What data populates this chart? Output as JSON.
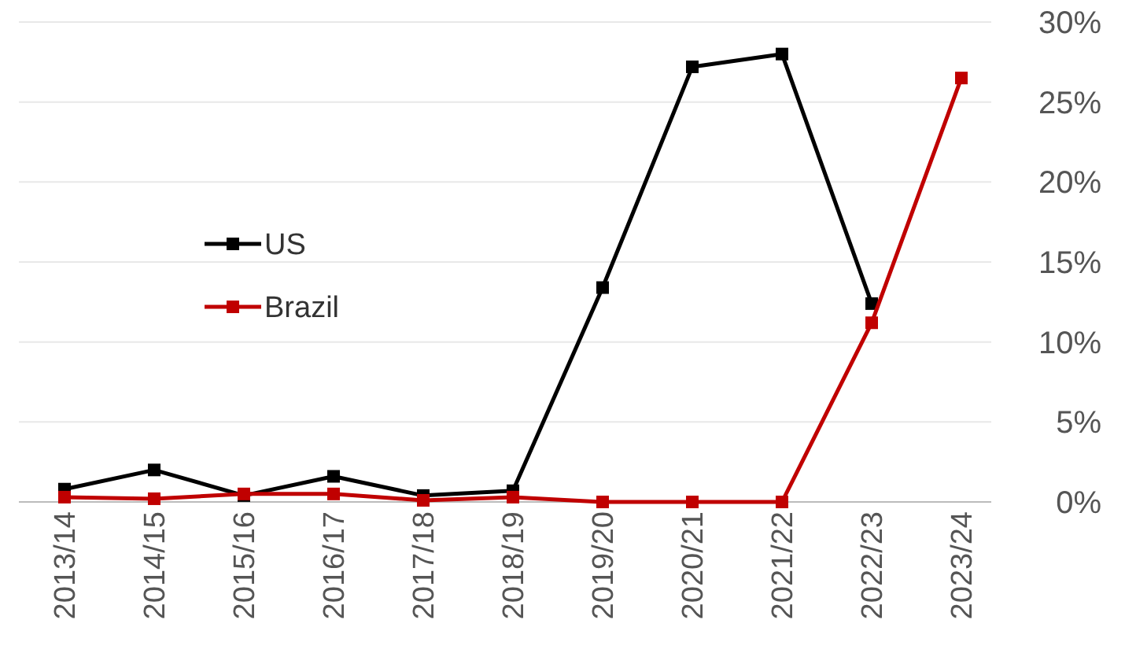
{
  "chart_data": {
    "type": "line",
    "categories": [
      "2013/14",
      "2014/15",
      "2015/16",
      "2016/17",
      "2017/18",
      "2018/19",
      "2019/20",
      "2020/21",
      "2021/22",
      "2022/23",
      "2023/24"
    ],
    "series": [
      {
        "name": "US",
        "color": "#000000",
        "values": [
          0.8,
          2.0,
          0.4,
          1.6,
          0.4,
          0.7,
          13.4,
          27.2,
          28.0,
          12.4,
          null
        ]
      },
      {
        "name": "Brazil",
        "color": "#c00000",
        "values": [
          0.3,
          0.2,
          0.5,
          0.5,
          0.1,
          0.3,
          0,
          0,
          0,
          11.2,
          26.5
        ]
      }
    ],
    "ylim": [
      0,
      30
    ],
    "yticks": [
      {
        "value": 0,
        "label": "0%"
      },
      {
        "value": 5,
        "label": "5%"
      },
      {
        "value": 10,
        "label": "10%"
      },
      {
        "value": 15,
        "label": "15%"
      },
      {
        "value": 20,
        "label": "20%"
      },
      {
        "value": 25,
        "label": "25%"
      },
      {
        "value": 30,
        "label": "30%"
      }
    ],
    "grid": "y",
    "legend": "left",
    "marker": "square",
    "line_style": "solid"
  }
}
